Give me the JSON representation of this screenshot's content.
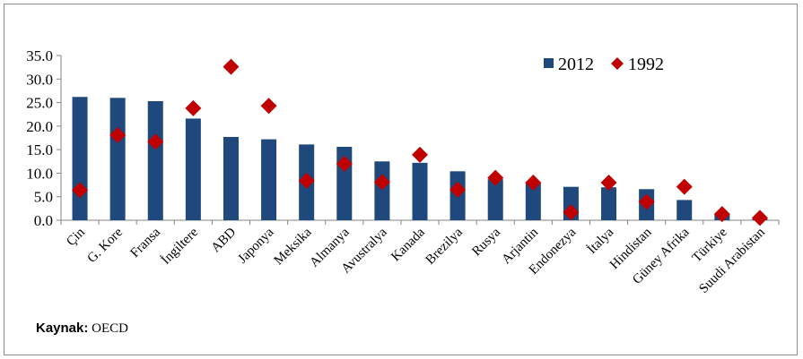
{
  "chart_data": {
    "type": "bar",
    "categories": [
      "Çin",
      "G. Kore",
      "Fransa",
      "İngiltere",
      "ABD",
      "Japonya",
      "Meksika",
      "Almanya",
      "Avustralya",
      "Kanada",
      "Brezilya",
      "Rusya",
      "Arjantin",
      "Endonezya",
      "İtalya",
      "Hindistan",
      "Güney Afrika",
      "Türkiye",
      "Suudi Arabistan"
    ],
    "series": [
      {
        "name": "2012",
        "type": "bar",
        "color": "#1f497d",
        "values": [
          26.2,
          26.0,
          25.3,
          21.6,
          17.7,
          17.2,
          16.1,
          15.6,
          12.5,
          12.2,
          10.4,
          8.7,
          7.9,
          7.1,
          7.0,
          6.6,
          4.3,
          1.3,
          0.3
        ]
      },
      {
        "name": "1992",
        "type": "scatter",
        "color": "#c00000",
        "values": [
          6.4,
          18.1,
          16.7,
          23.8,
          32.6,
          24.3,
          8.4,
          12.0,
          8.1,
          13.9,
          6.5,
          9.0,
          8.0,
          1.7,
          8.0,
          3.9,
          7.1,
          1.3,
          0.5
        ]
      }
    ],
    "yticks": [
      "0.0",
      "5.0",
      "10.0",
      "15.0",
      "20.0",
      "25.0",
      "30.0",
      "35.0"
    ],
    "ylim": [
      0,
      35
    ],
    "legend_position": "top-right"
  },
  "source": {
    "label": "Kaynak:",
    "value": "OECD"
  }
}
